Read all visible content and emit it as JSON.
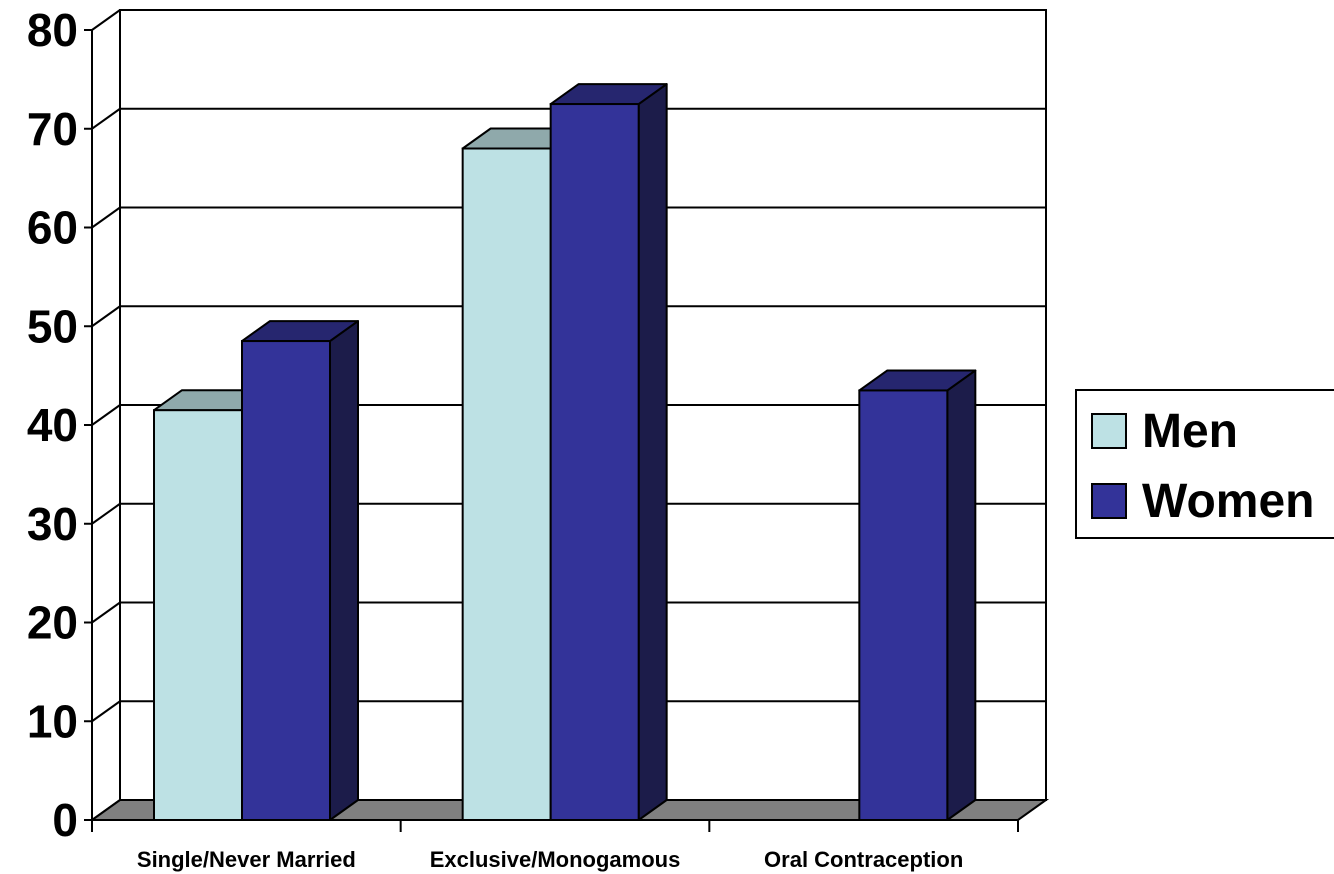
{
  "chart_data": {
    "type": "bar",
    "title": "",
    "xlabel": "",
    "ylabel": "",
    "categories": [
      "Single/Never Married",
      "Exclusive/Monogamous",
      "Oral Contraception"
    ],
    "series": [
      {
        "name": "Men",
        "values": [
          41.5,
          68,
          null
        ],
        "color": "#BDE1E4",
        "top_color": "#8FA9AB",
        "side_color": "#6E8A8C"
      },
      {
        "name": "Women",
        "values": [
          48.5,
          72.5,
          43.5
        ],
        "color": "#333399",
        "top_color": "#26266F",
        "side_color": "#1C1C4A"
      }
    ],
    "ylim": [
      0,
      80
    ],
    "yticks": [
      "0",
      "10",
      "20",
      "30",
      "40",
      "50",
      "60",
      "70",
      "80"
    ],
    "grid": true,
    "legend_position": "right",
    "floor_color": "#808080"
  }
}
